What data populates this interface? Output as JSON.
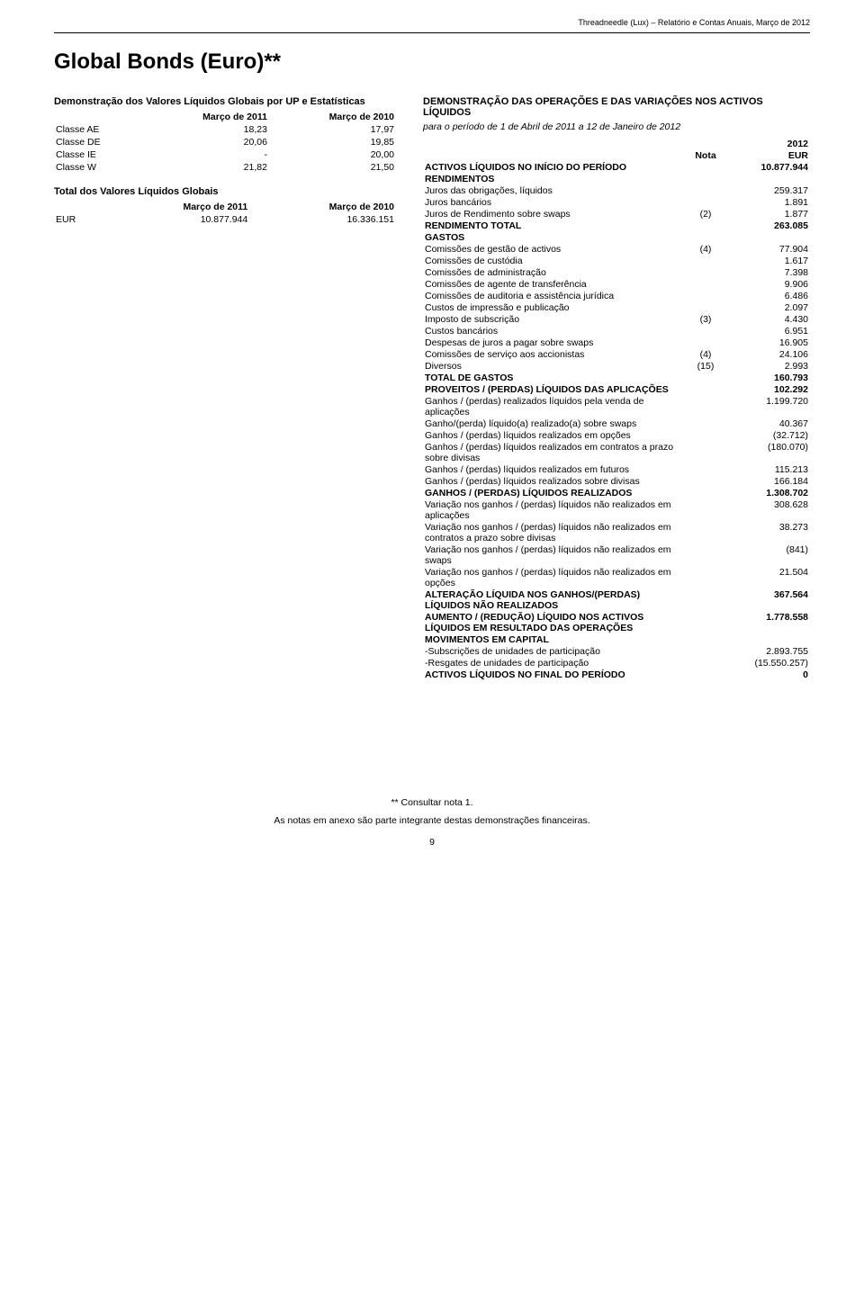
{
  "header": {
    "running": "Threadneedle (Lux) – Relatório e Contas Anuais, Março de 2012"
  },
  "title": "Global Bonds (Euro)**",
  "left": {
    "heading1": "Demonstração dos Valores Líquidos Globais por UP e Estatísticas",
    "stats_cols": [
      "",
      "Março de 2011",
      "Março de 2010"
    ],
    "stats_rows": [
      [
        "Classe AE",
        "18,23",
        "17,97"
      ],
      [
        "Classe DE",
        "20,06",
        "19,85"
      ],
      [
        "Classe IE",
        "-",
        "20,00"
      ],
      [
        "Classe W",
        "21,82",
        "21,50"
      ]
    ],
    "heading2": "Total dos Valores Líquidos Globais",
    "totals_cols": [
      "",
      "Março de 2011",
      "Março de 2010"
    ],
    "totals_rows": [
      [
        "EUR",
        "10.877.944",
        "16.336.151"
      ]
    ]
  },
  "right": {
    "heading": "DEMONSTRAÇÃO DAS OPERAÇÕES E DAS VARIAÇÕES NOS ACTIVOS LÍQUIDOS",
    "subheading": "para o período de 1 de Abril de 2011 a 12 de Janeiro de 2012",
    "col_nota": "Nota",
    "col_year": "2012",
    "col_cur": "EUR",
    "rows": [
      {
        "label": "ACTIVOS LÍQUIDOS NO INÍCIO DO PERÍODO",
        "nota": "",
        "val": "10.877.944",
        "bold": true
      },
      {
        "label": "RENDIMENTOS",
        "nota": "",
        "val": "",
        "bold": true
      },
      {
        "label": "Juros das obrigações, líquidos",
        "nota": "",
        "val": "259.317"
      },
      {
        "label": "Juros bancários",
        "nota": "",
        "val": "1.891"
      },
      {
        "label": "Juros de Rendimento sobre swaps",
        "nota": "(2)",
        "val": "1.877"
      },
      {
        "label": "RENDIMENTO TOTAL",
        "nota": "",
        "val": "263.085",
        "bold": true
      },
      {
        "label": "GASTOS",
        "nota": "",
        "val": "",
        "bold": true
      },
      {
        "label": "Comissões de gestão de activos",
        "nota": "(4)",
        "val": "77.904"
      },
      {
        "label": "Comissões de custódia",
        "nota": "",
        "val": "1.617"
      },
      {
        "label": "Comissões de administração",
        "nota": "",
        "val": "7.398"
      },
      {
        "label": "Comissões de agente de transferência",
        "nota": "",
        "val": "9.906"
      },
      {
        "label": "Comissões de auditoria e assistência jurídica",
        "nota": "",
        "val": "6.486"
      },
      {
        "label": "Custos de impressão e publicação",
        "nota": "",
        "val": "2.097"
      },
      {
        "label": "Imposto de subscrição",
        "nota": "(3)",
        "val": "4.430"
      },
      {
        "label": "Custos bancários",
        "nota": "",
        "val": "6.951"
      },
      {
        "label": "Despesas de juros a pagar sobre swaps",
        "nota": "",
        "val": "16.905"
      },
      {
        "label": "Comissões de serviço aos accionistas",
        "nota": "(4)",
        "val": "24.106"
      },
      {
        "label": "Diversos",
        "nota": "(15)",
        "val": "2.993"
      },
      {
        "label": "TOTAL DE GASTOS",
        "nota": "",
        "val": "160.793",
        "bold": true
      },
      {
        "label": "PROVEITOS / (PERDAS) LÍQUIDOS DAS APLICAÇÕES",
        "nota": "",
        "val": "102.292",
        "bold": true
      },
      {
        "label": "Ganhos / (perdas) realizados líquidos pela venda de aplicações",
        "nota": "",
        "val": "1.199.720"
      },
      {
        "label": "Ganho/(perda) líquido(a) realizado(a) sobre swaps",
        "nota": "",
        "val": "40.367"
      },
      {
        "label": "Ganhos / (perdas) líquidos realizados em opções",
        "nota": "",
        "val": "(32.712)"
      },
      {
        "label": "Ganhos / (perdas) líquidos realizados em contratos a prazo sobre divisas",
        "nota": "",
        "val": "(180.070)"
      },
      {
        "label": "Ganhos / (perdas) líquidos realizados em futuros",
        "nota": "",
        "val": "115.213"
      },
      {
        "label": "Ganhos / (perdas) líquidos realizados sobre divisas",
        "nota": "",
        "val": "166.184"
      },
      {
        "label": "GANHOS / (PERDAS) LÍQUIDOS REALIZADOS",
        "nota": "",
        "val": "1.308.702",
        "bold": true
      },
      {
        "label": "Variação nos ganhos / (perdas) líquidos não realizados em aplicações",
        "nota": "",
        "val": "308.628"
      },
      {
        "label": "Variação nos ganhos / (perdas) líquidos não realizados em contratos a prazo sobre divisas",
        "nota": "",
        "val": "38.273"
      },
      {
        "label": "Variação nos ganhos / (perdas) líquidos não realizados em swaps",
        "nota": "",
        "val": "(841)"
      },
      {
        "label": "Variação nos ganhos / (perdas) líquidos não realizados em opções",
        "nota": "",
        "val": "21.504"
      },
      {
        "label": "ALTERAÇÃO LÍQUIDA NOS GANHOS/(PERDAS) LÍQUIDOS NÃO REALIZADOS",
        "nota": "",
        "val": "367.564",
        "bold": true
      },
      {
        "label": "AUMENTO / (REDUÇÃO) LÍQUIDO NOS ACTIVOS LÍQUIDOS EM RESULTADO DAS OPERAÇÕES",
        "nota": "",
        "val": "1.778.558",
        "bold": true
      },
      {
        "label": "MOVIMENTOS EM CAPITAL",
        "nota": "",
        "val": "",
        "bold": true
      },
      {
        "label": "-Subscrições de unidades de participação",
        "nota": "",
        "val": "2.893.755"
      },
      {
        "label": "-Resgates de unidades de participação",
        "nota": "",
        "val": "(15.550.257)"
      },
      {
        "label": "ACTIVOS LÍQUIDOS NO FINAL DO PERÍODO",
        "nota": "",
        "val": "0",
        "bold": true
      }
    ]
  },
  "footer": {
    "note1": "** Consultar nota 1.",
    "note2": "As notas em anexo são parte integrante destas demonstrações financeiras.",
    "page": "9"
  }
}
